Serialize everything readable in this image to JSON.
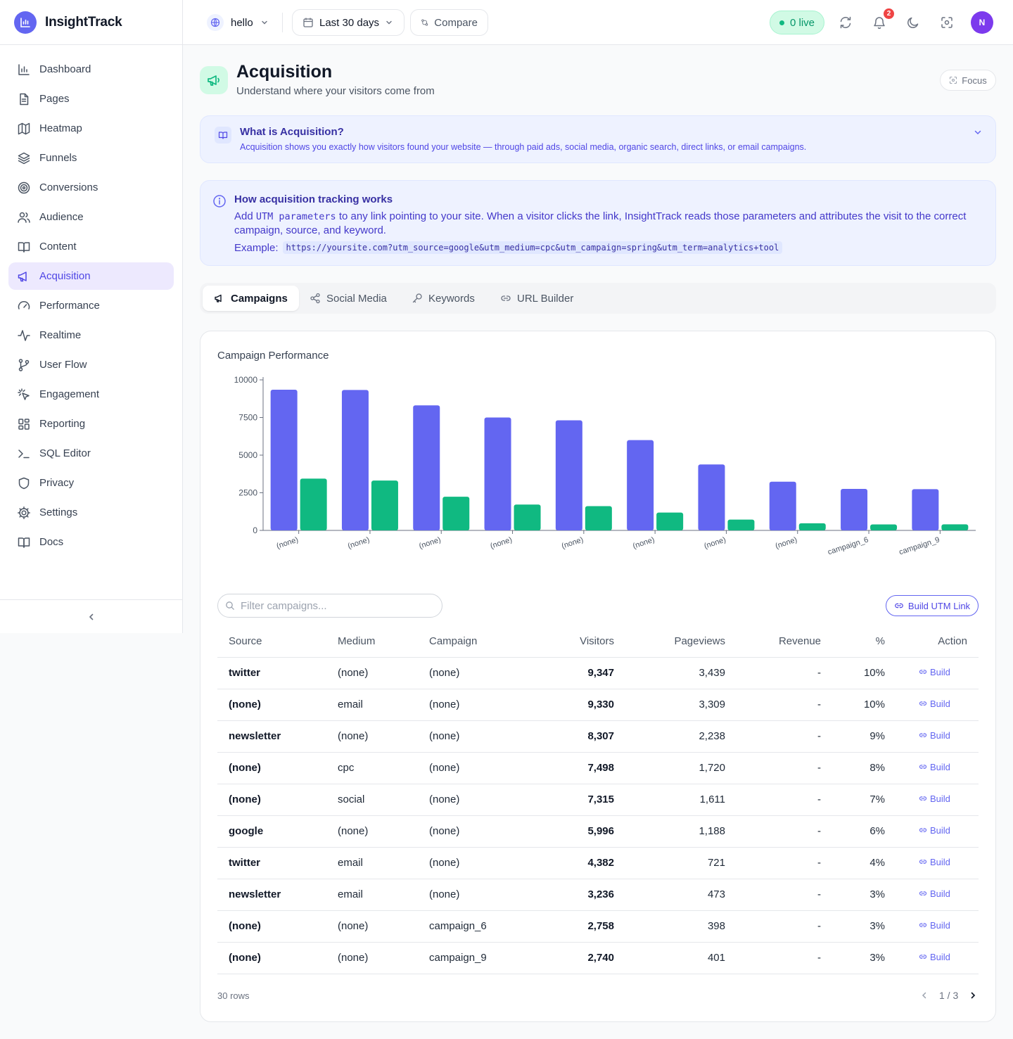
{
  "brand": {
    "name": "InsightTrack"
  },
  "sidebar": {
    "items": [
      {
        "label": "Dashboard",
        "icon": "bar-chart-icon"
      },
      {
        "label": "Pages",
        "icon": "file-icon"
      },
      {
        "label": "Heatmap",
        "icon": "map-icon"
      },
      {
        "label": "Funnels",
        "icon": "layers-icon"
      },
      {
        "label": "Conversions",
        "icon": "target-icon"
      },
      {
        "label": "Audience",
        "icon": "users-icon"
      },
      {
        "label": "Content",
        "icon": "book-icon"
      },
      {
        "label": "Acquisition",
        "icon": "megaphone-icon",
        "active": true
      },
      {
        "label": "Performance",
        "icon": "gauge-icon"
      },
      {
        "label": "Realtime",
        "icon": "activity-icon"
      },
      {
        "label": "User Flow",
        "icon": "git-branch-icon"
      },
      {
        "label": "Engagement",
        "icon": "pointer-click-icon"
      },
      {
        "label": "Reporting",
        "icon": "grid-icon"
      },
      {
        "label": "SQL Editor",
        "icon": "terminal-icon"
      },
      {
        "label": "Privacy",
        "icon": "shield-icon"
      },
      {
        "label": "Settings",
        "icon": "gear-icon"
      },
      {
        "label": "Docs",
        "icon": "book-open-icon"
      }
    ]
  },
  "topbar": {
    "site": "hello",
    "date_range": "Last 30 days",
    "compare": "Compare",
    "live": "0 live",
    "notifications": "2",
    "avatar": "N"
  },
  "header": {
    "title": "Acquisition",
    "subtitle": "Understand where your visitors come from",
    "focus": "Focus"
  },
  "whatis": {
    "title": "What is Acquisition?",
    "desc": "Acquisition shows you exactly how visitors found your website — through paid ads, social media, organic search, direct links, or email campaigns."
  },
  "howto": {
    "title": "How acquisition tracking works",
    "body_pre": "Add",
    "body_code": "UTM parameters",
    "body_post": "to any link pointing to your site. When a visitor clicks the link, InsightTrack reads those parameters and attributes the visit to the correct campaign, source, and keyword.",
    "example_label": "Example:",
    "example": "https://yoursite.com?utm_source=google&utm_medium=cpc&utm_campaign=spring&utm_term=analytics+tool"
  },
  "tabs": [
    {
      "label": "Campaigns",
      "active": true
    },
    {
      "label": "Social Media"
    },
    {
      "label": "Keywords"
    },
    {
      "label": "URL Builder"
    }
  ],
  "chart_data": {
    "type": "bar",
    "title": "Campaign Performance",
    "categories": [
      "(none)",
      "(none)",
      "(none)",
      "(none)",
      "(none)",
      "(none)",
      "(none)",
      "(none)",
      "campaign_6",
      "campaign_9"
    ],
    "series": [
      {
        "values": [
          9347,
          9330,
          8307,
          7498,
          7315,
          5996,
          4382,
          3236,
          2758,
          2740
        ],
        "color": "#6366f1"
      },
      {
        "values": [
          3439,
          3309,
          2238,
          1720,
          1611,
          1188,
          721,
          473,
          398,
          401
        ],
        "color": "#10b981"
      }
    ],
    "ylim": [
      0,
      10000
    ],
    "yticks": [
      "0",
      "2500",
      "5000",
      "7500",
      "10000"
    ],
    "grid": false
  },
  "filter": {
    "placeholder": "Filter campaigns..."
  },
  "build_utm": "Build UTM Link",
  "table": {
    "columns": [
      "Source",
      "Medium",
      "Campaign",
      "Visitors",
      "Pageviews",
      "Revenue",
      "%",
      "Action"
    ],
    "rows": [
      [
        "twitter",
        "(none)",
        "(none)",
        "9,347",
        "3,439",
        "-",
        "10%",
        "Build"
      ],
      [
        "(none)",
        "email",
        "(none)",
        "9,330",
        "3,309",
        "-",
        "10%",
        "Build"
      ],
      [
        "newsletter",
        "(none)",
        "(none)",
        "8,307",
        "2,238",
        "-",
        "9%",
        "Build"
      ],
      [
        "(none)",
        "cpc",
        "(none)",
        "7,498",
        "1,720",
        "-",
        "8%",
        "Build"
      ],
      [
        "(none)",
        "social",
        "(none)",
        "7,315",
        "1,611",
        "-",
        "7%",
        "Build"
      ],
      [
        "google",
        "(none)",
        "(none)",
        "5,996",
        "1,188",
        "-",
        "6%",
        "Build"
      ],
      [
        "twitter",
        "email",
        "(none)",
        "4,382",
        "721",
        "-",
        "4%",
        "Build"
      ],
      [
        "newsletter",
        "email",
        "(none)",
        "3,236",
        "473",
        "-",
        "3%",
        "Build"
      ],
      [
        "(none)",
        "(none)",
        "campaign_6",
        "2,758",
        "398",
        "-",
        "3%",
        "Build"
      ],
      [
        "(none)",
        "(none)",
        "campaign_9",
        "2,740",
        "401",
        "-",
        "3%",
        "Build"
      ]
    ]
  },
  "footer": {
    "rows": "30 rows",
    "page": "1 / 3"
  }
}
